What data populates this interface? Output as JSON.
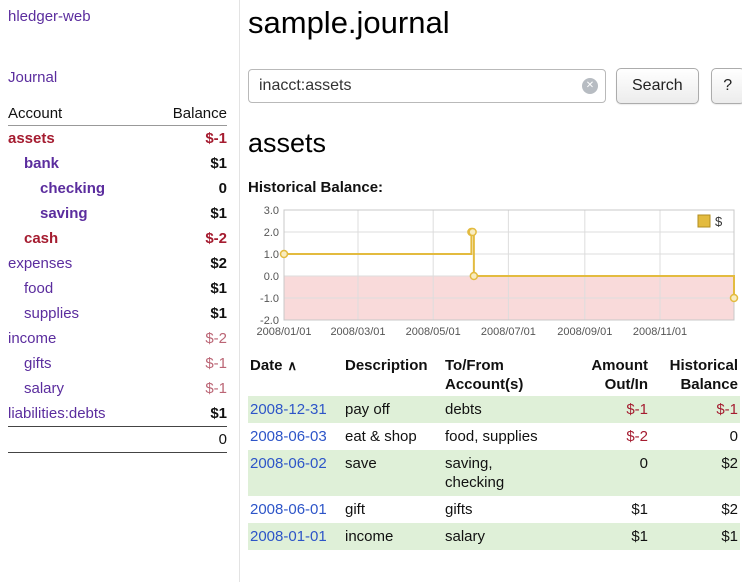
{
  "colors": {
    "link_purple": "#5b2d9e",
    "link_blue": "#2d55c8",
    "negative_strong": "#a51c30",
    "negative_soft": "#bb6575",
    "row_green": "#dff0d8",
    "chart_line": "#e3bb3f",
    "chart_below_zero_fill": "#f9dada"
  },
  "icons": {
    "clear": "✕",
    "sort_asc": "∧"
  },
  "sidebar": {
    "app_link": "hledger-web",
    "journal_link": "Journal",
    "accounts_table": {
      "headers": {
        "account": "Account",
        "balance": "Balance"
      },
      "rows": [
        {
          "name": "assets",
          "balance": "$-1"
        },
        {
          "name": "bank",
          "balance": "$1"
        },
        {
          "name": "checking",
          "balance": "0"
        },
        {
          "name": "saving",
          "balance": "$1"
        },
        {
          "name": "cash",
          "balance": "$-2"
        },
        {
          "name": "expenses",
          "balance": "$2"
        },
        {
          "name": "food",
          "balance": "$1"
        },
        {
          "name": "supplies",
          "balance": "$1"
        },
        {
          "name": "income",
          "balance": "$-2"
        },
        {
          "name": "gifts",
          "balance": "$-1"
        },
        {
          "name": "salary",
          "balance": "$-1"
        },
        {
          "name": "liabilities:debts",
          "balance": "$1"
        }
      ],
      "total": "0"
    }
  },
  "main": {
    "title": "sample.journal",
    "search": {
      "value": "inacct:assets",
      "search_button": "Search",
      "help_button": "?"
    },
    "account_heading": "assets",
    "chart_title": "Historical Balance:",
    "register": {
      "headers": {
        "date": "Date",
        "description": "Description",
        "account": "To/From\nAccount(s)",
        "amount": "Amount\nOut/In",
        "balance": "Historical\nBalance"
      },
      "rows": [
        {
          "date": "2008-12-31",
          "description": "pay off",
          "account": "debts",
          "amount": "$-1",
          "balance": "$-1"
        },
        {
          "date": "2008-06-03",
          "description": "eat & shop",
          "account": "food, supplies",
          "amount": "$-2",
          "balance": "0"
        },
        {
          "date": "2008-06-02",
          "description": "save",
          "account": "saving,\nchecking",
          "amount": "0",
          "balance": "$2"
        },
        {
          "date": "2008-06-01",
          "description": "gift",
          "account": "gifts",
          "amount": "$1",
          "balance": "$2"
        },
        {
          "date": "2008-01-01",
          "description": "income",
          "account": "salary",
          "amount": "$1",
          "balance": "$1"
        }
      ]
    }
  },
  "chart_data": {
    "type": "line",
    "step": true,
    "title": "Historical Balance:",
    "series": [
      {
        "name": "$",
        "color": "#e3bb3f",
        "points": [
          {
            "date": "2008-01-01",
            "value": 1
          },
          {
            "date": "2008-06-01",
            "value": 2
          },
          {
            "date": "2008-06-02",
            "value": 2
          },
          {
            "date": "2008-06-03",
            "value": 0
          },
          {
            "date": "2008-12-31",
            "value": -1
          }
        ]
      }
    ],
    "x_range": [
      "2008-01-01",
      "2008-12-31"
    ],
    "ylim": [
      -2,
      3
    ],
    "yticks": [
      3,
      2,
      1,
      0,
      -1,
      -2
    ],
    "xticks": [
      "2008/01/01",
      "2008/03/01",
      "2008/05/01",
      "2008/07/01",
      "2008/09/01",
      "2008/11/01"
    ],
    "legend": {
      "label": "$",
      "position": "top-right"
    },
    "grid": true,
    "negative_region_shaded": true
  }
}
